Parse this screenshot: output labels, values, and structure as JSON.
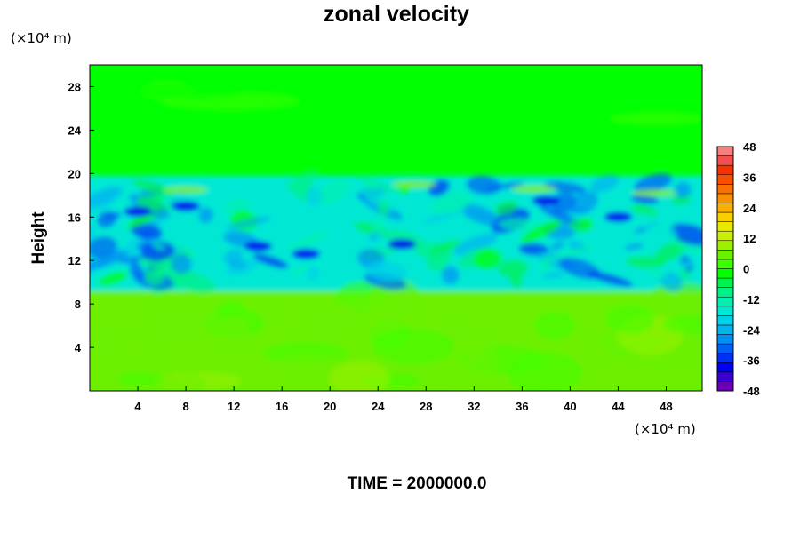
{
  "chart_data": {
    "type": "heatmap",
    "title": "zonal velocity",
    "xlabel": "",
    "ylabel": "Height",
    "x_unit": "(×10⁴ m)",
    "y_unit": "(×10⁴ m)",
    "xlim": [
      0,
      51
    ],
    "ylim": [
      0,
      30
    ],
    "xticks": [
      4,
      8,
      12,
      16,
      20,
      24,
      28,
      32,
      36,
      40,
      44,
      48
    ],
    "yticks": [
      4,
      8,
      12,
      16,
      20,
      24,
      28
    ],
    "colorbar": {
      "min": -48,
      "max": 48,
      "step": 4,
      "ticks": [
        48,
        36,
        24,
        12,
        0,
        -12,
        -24,
        -36,
        -48
      ],
      "colors": [
        "#6a00b4",
        "#3a00d0",
        "#0000f0",
        "#0030f4",
        "#0060f4",
        "#0090f4",
        "#00b4f0",
        "#00d0e8",
        "#00e8d4",
        "#00f0b0",
        "#00f088",
        "#00f050",
        "#00ff00",
        "#40ff00",
        "#6cf000",
        "#9cf000",
        "#c8f000",
        "#e8e800",
        "#f8d000",
        "#f8b000",
        "#f89000",
        "#f87000",
        "#f85000",
        "#f83000",
        "#f05050",
        "#f48080"
      ]
    },
    "field_description": "zonal velocity, mostly near 0 (green) in 0-9 and 20-30 bands; negative (cyan/blue, down to about -40) turbulent band between heights 9 and 20",
    "annotation": "TIME = 2000000.0"
  },
  "colors": {
    "background": "#ffffff",
    "zero_green": "#00ff00",
    "axis": "#000000"
  }
}
